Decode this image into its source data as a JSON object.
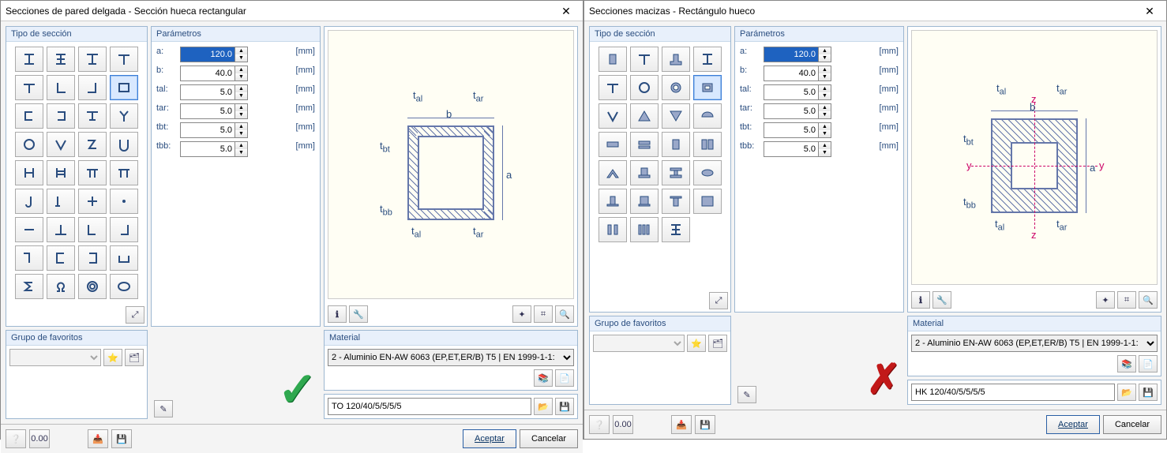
{
  "dialogs": [
    {
      "title": "Secciones de pared delgada - Sección hueca rectangular",
      "mark": "check",
      "selected_shape_index": 7,
      "shapes": [
        "I",
        "I2",
        "I3",
        "T",
        "T2",
        "L",
        "L2",
        "box",
        "C",
        "C2",
        "T3",
        "Y",
        "O",
        "V",
        "Z",
        "U",
        "H",
        "H2",
        "Pi",
        "Pi2",
        "J",
        "J2",
        "+",
        "dot",
        "-",
        "hT",
        "hJ",
        "hJ2",
        "hJ3",
        "C3",
        "C4",
        "C5",
        "Sg",
        "Om",
        "O2",
        "O3"
      ],
      "params": [
        {
          "label": "a:",
          "value": "120.0",
          "unit": "[mm]",
          "hl": true
        },
        {
          "label": "b:",
          "value": "40.0",
          "unit": "[mm]"
        },
        {
          "label": "tal:",
          "value": "5.0",
          "unit": "[mm]"
        },
        {
          "label": "tar:",
          "value": "5.0",
          "unit": "[mm]"
        },
        {
          "label": "tbt:",
          "value": "5.0",
          "unit": "[mm]"
        },
        {
          "label": "tbb:",
          "value": "5.0",
          "unit": "[mm]"
        }
      ],
      "preview": {
        "labels": {
          "a": "a",
          "b": "b",
          "tal": "t_al",
          "tar": "t_ar",
          "tbt": "t_bt",
          "tbb": "t_bb"
        },
        "style": "walls"
      },
      "material_label": "Material",
      "material_value": "2 - Aluminio EN-AW 6063 (EP,ET,ER/B) T5 | EN 1999-1-1:",
      "fav_label": "Grupo de favoritos",
      "section_name": "TO 120/40/5/5/5/5",
      "type_label": "Tipo de sección",
      "param_label": "Parámetros",
      "accept": "Aceptar",
      "cancel": "Cancelar"
    },
    {
      "title": "Secciones macizas - Rectángulo hueco",
      "mark": "x",
      "selected_shape_index": 7,
      "shapes": [
        "R",
        "T",
        "uT",
        "I",
        "T2",
        "O",
        "Oh",
        "Rh",
        "V",
        "Tr",
        "Tr2",
        "Hm",
        "S1",
        "S2",
        "S3",
        "S4",
        "A1",
        "A2",
        "A3",
        "el",
        "S5",
        "S6",
        "S7",
        "fill",
        "bb",
        "bbb",
        "I2",
        "",
        "",
        "",
        "",
        ""
      ],
      "params": [
        {
          "label": "a:",
          "value": "120.0",
          "unit": "[mm]",
          "hl": true
        },
        {
          "label": "b:",
          "value": "40.0",
          "unit": "[mm]"
        },
        {
          "label": "tal:",
          "value": "5.0",
          "unit": "[mm]"
        },
        {
          "label": "tar:",
          "value": "5.0",
          "unit": "[mm]"
        },
        {
          "label": "tbt:",
          "value": "5.0",
          "unit": "[mm]"
        },
        {
          "label": "tbb:",
          "value": "5.0",
          "unit": "[mm]"
        }
      ],
      "preview": {
        "labels": {
          "a": "a",
          "b": "b",
          "tal": "t_al",
          "tar": "t_ar",
          "tbt": "t_bt",
          "tbb": "t_bb"
        },
        "style": "solid"
      },
      "material_label": "Material",
      "material_value": "2 - Aluminio EN-AW 6063 (EP,ET,ER/B) T5 | EN 1999-1-1:",
      "fav_label": "Grupo de favoritos",
      "section_name": "HK 120/40/5/5/5/5",
      "type_label": "Tipo de sección",
      "param_label": "Parámetros",
      "accept": "Aceptar",
      "cancel": "Cancelar"
    }
  ],
  "colors": {
    "panel_header": "#e8f0fb",
    "accent": "#2a4d7f",
    "canvas_bg": "#fffef4",
    "shape_stroke": "#6577aa",
    "check": "#2fa84f",
    "x": "#c21919"
  }
}
